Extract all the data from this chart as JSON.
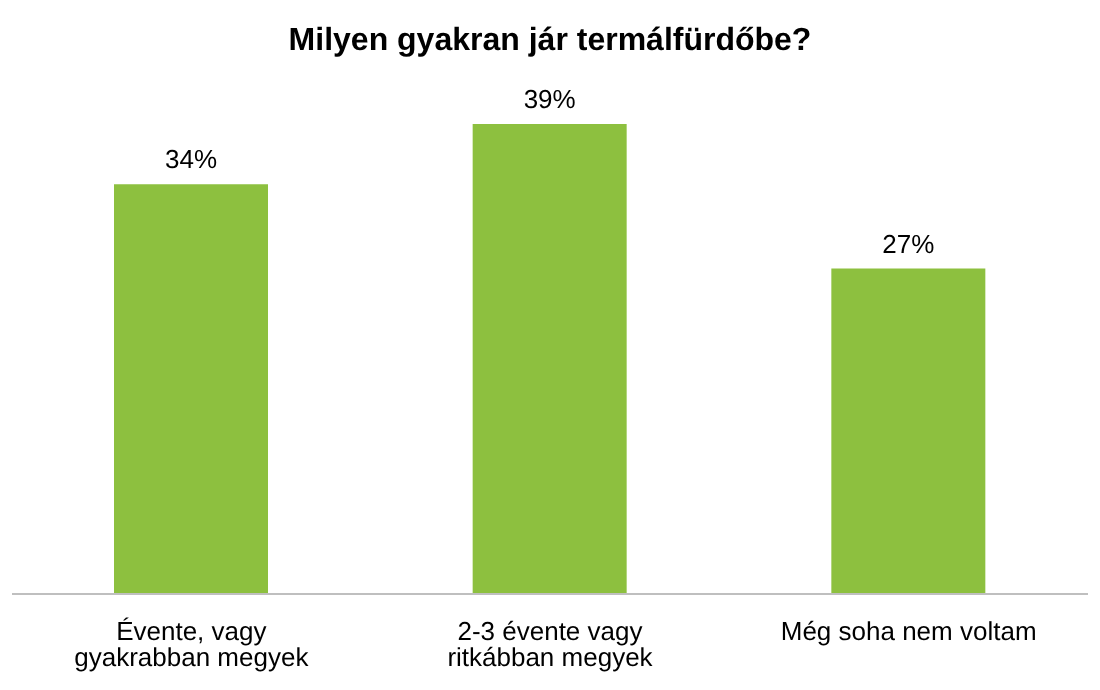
{
  "chart_data": {
    "type": "bar",
    "title": "Milyen gyakran jár termálfürdőbe?",
    "categories": [
      "Évente, vagy gyakrabban megyek",
      "2-3 évente vagy ritkábban megyek",
      "Még soha nem voltam"
    ],
    "values": [
      34,
      39,
      27
    ],
    "color": "#8dc03f",
    "value_labels": [
      "34%",
      "39%",
      "27%"
    ],
    "grid": false,
    "legend": false
  }
}
